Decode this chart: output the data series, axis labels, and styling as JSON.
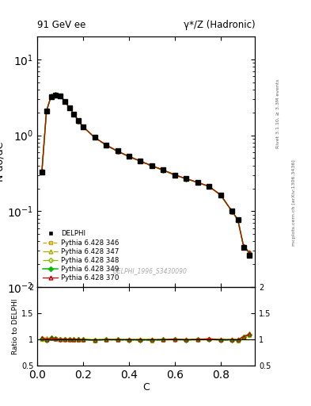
{
  "title_left": "91 GeV ee",
  "title_right": "γ*/Z (Hadronic)",
  "xlabel": "C",
  "ylabel_main": "N dσ/dC",
  "ylabel_ratio": "Ratio to DELPHI",
  "right_label_top": "Rivet 3.1.10, ≥ 3.3M events",
  "right_label_bot": "mcplots.cern.ch [arXiv:1306.3436]",
  "watermark": "DELPHI_1996_S3430090",
  "x_data": [
    0.02,
    0.04,
    0.06,
    0.08,
    0.1,
    0.12,
    0.14,
    0.16,
    0.18,
    0.2,
    0.25,
    0.3,
    0.35,
    0.4,
    0.45,
    0.5,
    0.55,
    0.6,
    0.65,
    0.7,
    0.75,
    0.8,
    0.85,
    0.875,
    0.9,
    0.925
  ],
  "delphi_y": [
    0.33,
    2.1,
    3.2,
    3.4,
    3.3,
    2.8,
    2.3,
    1.9,
    1.55,
    1.3,
    0.95,
    0.75,
    0.62,
    0.53,
    0.46,
    0.4,
    0.35,
    0.3,
    0.27,
    0.24,
    0.21,
    0.165,
    0.1,
    0.078,
    0.033,
    0.026
  ],
  "delphi_yerr": [
    0.02,
    0.05,
    0.07,
    0.07,
    0.07,
    0.06,
    0.05,
    0.04,
    0.03,
    0.03,
    0.02,
    0.015,
    0.012,
    0.01,
    0.009,
    0.008,
    0.007,
    0.006,
    0.005,
    0.005,
    0.004,
    0.003,
    0.002,
    0.0015,
    0.0006,
    0.0005
  ],
  "py346_y": [
    0.33,
    2.05,
    3.25,
    3.42,
    3.28,
    2.78,
    2.28,
    1.88,
    1.53,
    1.28,
    0.93,
    0.74,
    0.61,
    0.52,
    0.45,
    0.39,
    0.345,
    0.298,
    0.265,
    0.238,
    0.21,
    0.162,
    0.098,
    0.076,
    0.034,
    0.028
  ],
  "py347_y": [
    0.34,
    2.15,
    3.3,
    3.45,
    3.32,
    2.82,
    2.31,
    1.91,
    1.56,
    1.3,
    0.94,
    0.75,
    0.62,
    0.53,
    0.46,
    0.4,
    0.35,
    0.302,
    0.268,
    0.24,
    0.212,
    0.165,
    0.1,
    0.078,
    0.035,
    0.029
  ],
  "py348_y": [
    0.335,
    2.08,
    3.27,
    3.43,
    3.29,
    2.8,
    2.29,
    1.9,
    1.54,
    1.29,
    0.935,
    0.745,
    0.615,
    0.525,
    0.455,
    0.395,
    0.347,
    0.3,
    0.267,
    0.239,
    0.211,
    0.163,
    0.099,
    0.077,
    0.0345,
    0.0285
  ],
  "py349_y": [
    0.335,
    2.08,
    3.27,
    3.43,
    3.29,
    2.8,
    2.29,
    1.9,
    1.54,
    1.29,
    0.935,
    0.745,
    0.615,
    0.525,
    0.455,
    0.395,
    0.347,
    0.3,
    0.267,
    0.239,
    0.211,
    0.163,
    0.099,
    0.077,
    0.0345,
    0.0285
  ],
  "py370_y": [
    0.34,
    2.1,
    3.28,
    3.44,
    3.3,
    2.81,
    2.3,
    1.905,
    1.545,
    1.295,
    0.938,
    0.747,
    0.617,
    0.527,
    0.457,
    0.397,
    0.348,
    0.301,
    0.268,
    0.24,
    0.212,
    0.164,
    0.0995,
    0.0775,
    0.0346,
    0.0286
  ],
  "color_346": "#c8a000",
  "color_347": "#aaaa00",
  "color_348": "#80c000",
  "color_349": "#00bb00",
  "color_370": "#cc0000",
  "color_delphi": "#000000",
  "xlim": [
    0.0,
    0.95
  ],
  "ylim_main": [
    0.01,
    20
  ],
  "ylim_ratio": [
    0.5,
    2.0
  ],
  "bg_color": "#ffffff"
}
